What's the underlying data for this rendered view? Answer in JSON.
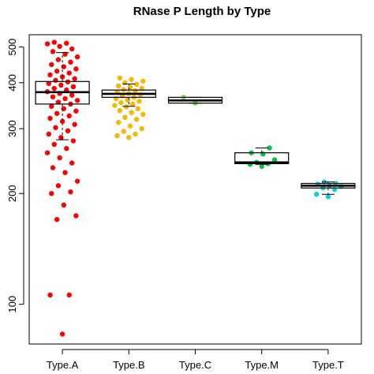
{
  "chart_data": {
    "type": "boxplot",
    "title": "RNase P Length by Type",
    "xlabel": "",
    "ylabel": "",
    "y_scale": "log",
    "ylim": [
      78,
      540
    ],
    "y_ticks": [
      100,
      200,
      300,
      400,
      500
    ],
    "categories": [
      "Type.A",
      "Type.B",
      "Type.C",
      "Type.M",
      "Type.T"
    ],
    "series": [
      {
        "category": "Type.A",
        "color": "#ff0000",
        "box": {
          "min": 280,
          "q1": 350,
          "median": 377,
          "q3": 403,
          "max": 483
        },
        "points": [
          83,
          106,
          106,
          170,
          174,
          186,
          200,
          202,
          210,
          216,
          228,
          235,
          242,
          250,
          258,
          265,
          272,
          278,
          284,
          290,
          296,
          302,
          308,
          314,
          320,
          325,
          330,
          335,
          340,
          345,
          350,
          354,
          358,
          362,
          366,
          370,
          374,
          378,
          382,
          386,
          390,
          394,
          398,
          402,
          406,
          410,
          415,
          420,
          425,
          430,
          436,
          442,
          448,
          455,
          462,
          470,
          478,
          486,
          494,
          502,
          510,
          512,
          515
        ]
      },
      {
        "category": "Type.B",
        "color": "#f5b800",
        "box": {
          "min": 345,
          "q1": 365,
          "median": 373,
          "q3": 382,
          "max": 397
        },
        "points": [
          284,
          287,
          290,
          295,
          300,
          305,
          312,
          318,
          322,
          328,
          332,
          336,
          340,
          344,
          347,
          350,
          353,
          356,
          359,
          362,
          365,
          368,
          371,
          374,
          377,
          380,
          383,
          386,
          389,
          392,
          396,
          400,
          404,
          408,
          412
        ]
      },
      {
        "category": "Type.C",
        "color": "#8fd14f",
        "box": {
          "min": 352,
          "q1": 352,
          "median": 358,
          "q3": 365,
          "max": 365
        },
        "points": [
          352,
          365
        ]
      },
      {
        "category": "Type.M",
        "color": "#00c44a",
        "box": {
          "min": 240,
          "q1": 241,
          "median": 243,
          "q3": 258,
          "max": 266
        },
        "points": [
          237,
          240,
          241,
          243,
          247,
          256,
          258,
          266
        ]
      },
      {
        "category": "Type.T",
        "color": "#00d8d8",
        "box": {
          "min": 199,
          "q1": 207,
          "median": 210,
          "q3": 213,
          "max": 215
        },
        "points": [
          196,
          199,
          205,
          207,
          209,
          210,
          212,
          213,
          215
        ]
      }
    ]
  }
}
